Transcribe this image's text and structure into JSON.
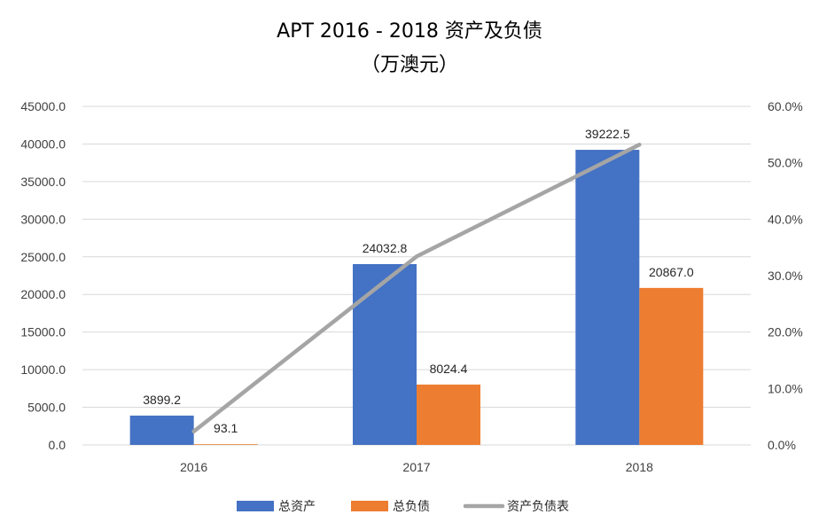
{
  "chart_data": {
    "type": "bar",
    "title": "APT 2016 - 2018 资产及负债",
    "subtitle": "（万澳元）",
    "categories": [
      "2016",
      "2017",
      "2018"
    ],
    "series": [
      {
        "name": "总资产",
        "type": "bar",
        "axis": "left",
        "color": "#4472C4",
        "values": [
          3899.2,
          24032.8,
          39222.5
        ],
        "labels": [
          "3899.2",
          "24032.8",
          "39222.5"
        ]
      },
      {
        "name": "总负债",
        "type": "bar",
        "axis": "left",
        "color": "#ED7D31",
        "values": [
          93.1,
          8024.4,
          20867.0
        ],
        "labels": [
          "93.1",
          "8024.4",
          "20867.0"
        ]
      },
      {
        "name": "资产负债表",
        "type": "line",
        "axis": "right",
        "color": "#A5A5A5",
        "values": [
          2.4,
          33.4,
          53.2
        ]
      }
    ],
    "left_axis": {
      "ylim": [
        0,
        45000
      ],
      "ticks": [
        "0.0",
        "5000.0",
        "10000.0",
        "15000.0",
        "20000.0",
        "25000.0",
        "30000.0",
        "35000.0",
        "40000.0",
        "45000.0"
      ]
    },
    "right_axis": {
      "ylim": [
        0,
        60
      ],
      "ticks": [
        "0.0%",
        "10.0%",
        "20.0%",
        "30.0%",
        "40.0%",
        "50.0%",
        "60.0%"
      ]
    },
    "grid": true,
    "legend_position": "bottom"
  }
}
